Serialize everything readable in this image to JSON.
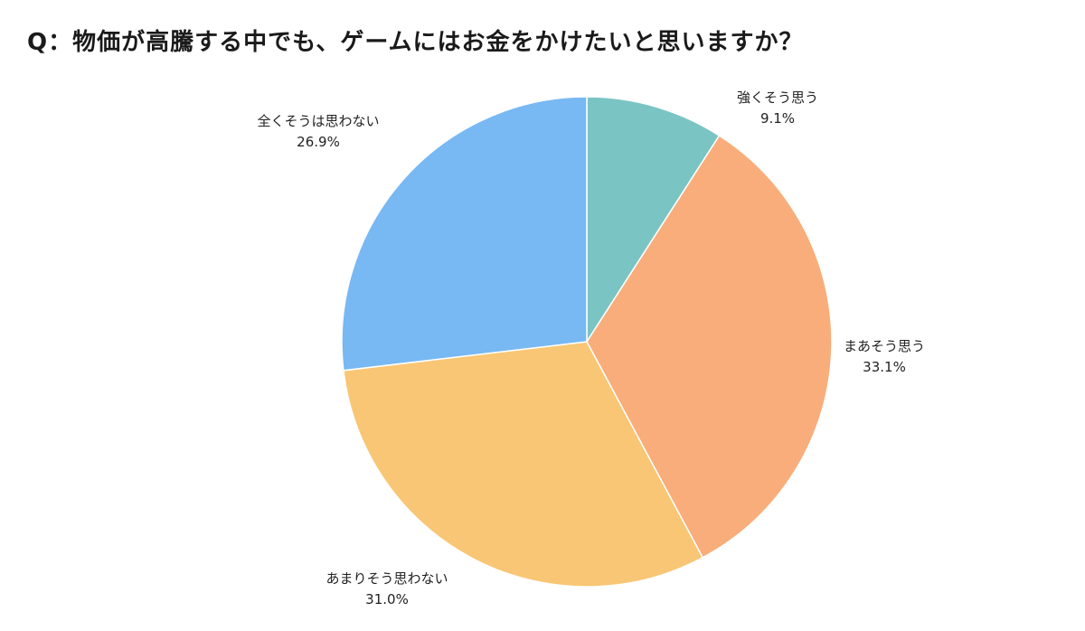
{
  "title": "Q：物価が高騰する中でも、ゲームにはお金をかけたいと思いますか？",
  "chart_data": {
    "type": "pie",
    "title": "Q：物価が高騰する中でも、ゲームにはお金をかけたいと思いますか？",
    "slices": [
      {
        "label": "強くそう思う",
        "value": 9.1,
        "value_label": "9.1%",
        "color": "#7bc4c4"
      },
      {
        "label": "まあそう思う",
        "value": 33.1,
        "value_label": "33.1%",
        "color": "#f9ad7a"
      },
      {
        "label": "あまりそう思わない",
        "value": 31.0,
        "value_label": "31.0%",
        "color": "#f8c674"
      },
      {
        "label": "全くそうは思わない",
        "value": 26.9,
        "value_label": "26.9%",
        "color": "#78b8f3"
      }
    ],
    "start_angle": "12 o'clock",
    "direction": "clockwise",
    "legend": "none"
  }
}
